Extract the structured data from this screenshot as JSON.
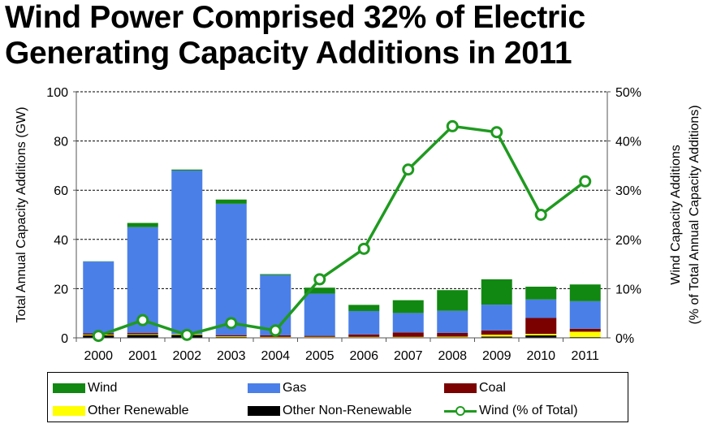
{
  "title_line1": "Wind Power Comprised 32% of Electric",
  "title_line2": "Generating Capacity Additions in 2011",
  "chart_data": {
    "type": "bar",
    "stacked": true,
    "categories": [
      "2000",
      "2001",
      "2002",
      "2003",
      "2004",
      "2005",
      "2006",
      "2007",
      "2008",
      "2009",
      "2010",
      "2011"
    ],
    "series": [
      {
        "name": "Other Non-Renewable",
        "color": "#000000",
        "values": [
          1.0,
          1.2,
          1.2,
          0.3,
          0.2,
          0.2,
          0.2,
          0.2,
          0.2,
          0.5,
          1.0,
          0.3
        ]
      },
      {
        "name": "Other Renewable",
        "color": "#ffff00",
        "values": [
          0.3,
          0.3,
          0.3,
          0.3,
          0.2,
          0.2,
          0.2,
          0.2,
          0.3,
          0.8,
          0.6,
          2.2
        ]
      },
      {
        "name": "Coal",
        "color": "#7b0000",
        "values": [
          0.5,
          0.5,
          0.0,
          0.5,
          0.6,
          0.4,
          1.0,
          1.8,
          1.5,
          1.7,
          6.5,
          1.2
        ]
      },
      {
        "name": "Gas",
        "color": "#4a7fe8",
        "values": [
          29.2,
          43.0,
          66.5,
          53.4,
          24.5,
          17.2,
          9.5,
          7.9,
          9.0,
          10.5,
          7.5,
          11.2
        ]
      },
      {
        "name": "Wind",
        "color": "#118811",
        "values": [
          0.1,
          1.7,
          0.4,
          1.7,
          0.4,
          2.4,
          2.5,
          5.2,
          8.4,
          10.3,
          5.2,
          6.8
        ]
      }
    ],
    "line_series": {
      "name": "Wind (% of Total)",
      "color": "#1f9a1f",
      "values": [
        0.4,
        3.6,
        0.6,
        3.0,
        1.5,
        11.9,
        18.1,
        34.2,
        43.0,
        41.8,
        25.0,
        31.8
      ]
    },
    "ylabel": "Total Annual  Capacity Additions (GW)",
    "y2label_line1": "Wind Capacity Additions",
    "y2label_line2": "(% of Total Annual Capacity Additions)",
    "ylim": [
      0,
      100
    ],
    "y2lim": [
      0,
      50
    ],
    "yticks": [
      "0",
      "20",
      "40",
      "60",
      "80",
      "100"
    ],
    "y2ticks": [
      "0%",
      "10%",
      "20%",
      "30%",
      "40%",
      "50%"
    ],
    "grid": true,
    "legend_position": "bottom"
  }
}
